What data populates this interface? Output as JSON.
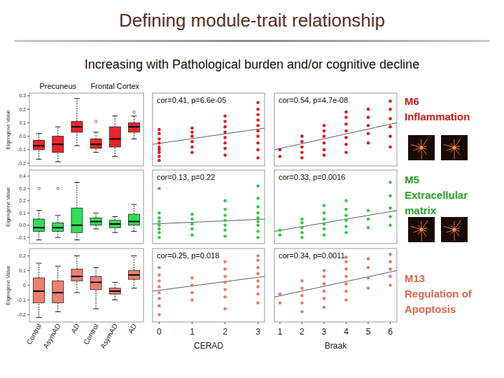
{
  "header": {
    "title": "Defining module-trait relationship",
    "subtitle": "Increasing with Pathological burden and/or cognitive decline"
  },
  "chart_data": [
    {
      "type": "box",
      "groups": [
        "Precuneus",
        "Frontal Cortex"
      ],
      "categories": [
        "Control",
        "AsymAD",
        "AD",
        "Control",
        "AsymAD",
        "AD"
      ],
      "ylabel": "Eigengene Value",
      "ylim": [
        -0.22,
        0.32
      ],
      "yticks": [
        -0.2,
        -0.1,
        {
          "value": 0,
          "label": "0.0"
        },
        0.1,
        0.2,
        0.3
      ],
      "tick_labels": "y",
      "color": "#e8262a",
      "boxes": [
        {
          "whislo": -0.17,
          "q1": -0.1,
          "med": -0.07,
          "q3": -0.03,
          "whishi": 0.02,
          "fliers": []
        },
        {
          "whislo": -0.19,
          "q1": -0.12,
          "med": -0.06,
          "q3": 0,
          "whishi": 0.07,
          "fliers": []
        },
        {
          "whislo": -0.07,
          "q1": 0.03,
          "med": 0.07,
          "q3": 0.11,
          "whishi": 0.28,
          "fliers": []
        },
        {
          "whislo": -0.12,
          "q1": -0.09,
          "med": -0.06,
          "q3": -0.02,
          "whishi": 0.03,
          "fliers": [
            0.11
          ]
        },
        {
          "whislo": -0.15,
          "q1": -0.08,
          "med": -0.02,
          "q3": 0.07,
          "whishi": 0.15,
          "fliers": []
        },
        {
          "whislo": -0.02,
          "q1": 0.03,
          "med": 0.07,
          "q3": 0.1,
          "whishi": 0.15,
          "fliers": [
            0.18
          ]
        }
      ],
      "module": {
        "label": "M6",
        "description": "Inflammation",
        "color": "#d42020"
      }
    },
    {
      "type": "scatter",
      "annotation": "cor=0.41, p=6.6e-05",
      "xlim": [
        -0.2,
        3.2
      ],
      "xticks": [
        0,
        1,
        2,
        3
      ],
      "ylim": [
        -0.22,
        0.32
      ],
      "tick_labels": false,
      "color": "#e3191c",
      "x": [
        0,
        0,
        0,
        0,
        0,
        0,
        0,
        0,
        0,
        1,
        1,
        1,
        1,
        1,
        1,
        2,
        2,
        2,
        2,
        2,
        2,
        2,
        2,
        3,
        3,
        3,
        3,
        3,
        3,
        3,
        3,
        3,
        3
      ],
      "values": [
        -0.18,
        -0.15,
        -0.12,
        -0.1,
        -0.08,
        -0.05,
        -0.02,
        0.02,
        0.05,
        -0.12,
        -0.08,
        -0.04,
        0,
        0.03,
        0.06,
        -0.14,
        -0.09,
        -0.05,
        -0.01,
        0.03,
        0.07,
        0.11,
        0.15,
        -0.16,
        -0.1,
        -0.05,
        0,
        0.04,
        0.08,
        0.12,
        0.16,
        0.2,
        0.25
      ],
      "trend": {
        "x": [
          -0.2,
          3.2
        ],
        "values": [
          -0.06,
          0.06
        ]
      }
    },
    {
      "type": "scatter",
      "annotation": "cor=0.54, p=4.7e-08",
      "xlim": [
        0.75,
        6.3
      ],
      "xticks": [
        1,
        2,
        3,
        4,
        5,
        6
      ],
      "ylim": [
        -0.22,
        0.32
      ],
      "tick_labels": false,
      "color": "#e3191c",
      "x": [
        1,
        1,
        2,
        2,
        2,
        2,
        2,
        3,
        3,
        3,
        3,
        3,
        3,
        4,
        4,
        4,
        4,
        4,
        4,
        4,
        5,
        5,
        5,
        5,
        5,
        6,
        6,
        6,
        6,
        6,
        6
      ],
      "values": [
        -0.15,
        -0.1,
        -0.16,
        -0.12,
        -0.08,
        -0.04,
        0,
        -0.14,
        -0.1,
        -0.05,
        0,
        0.04,
        0.08,
        -0.12,
        -0.06,
        -0.01,
        0.04,
        0.09,
        0.14,
        0.18,
        -0.05,
        0.02,
        0.08,
        0.14,
        0.2,
        -0.08,
        0,
        0.07,
        0.13,
        0.2,
        0.26
      ],
      "trend": {
        "x": [
          0.75,
          6.3
        ],
        "values": [
          -0.1,
          0.1
        ]
      }
    },
    {
      "type": "box",
      "categories": [
        "Control",
        "AsymAD",
        "AD",
        "Control",
        "AsymAD",
        "AD"
      ],
      "ylabel": "Eigengene Value",
      "ylim": [
        -0.15,
        0.45
      ],
      "yticks": [
        -0.1,
        {
          "value": 0,
          "label": "0.0"
        },
        0.1,
        0.2,
        0.3,
        0.4
      ],
      "tick_labels": "y",
      "color": "#33dd55",
      "boxes": [
        {
          "whislo": -0.12,
          "q1": -0.05,
          "med": -0.02,
          "q3": 0.05,
          "whishi": 0.12,
          "fliers": [
            0.3
          ]
        },
        {
          "whislo": -0.1,
          "q1": -0.05,
          "med": -0.02,
          "q3": 0.02,
          "whishi": 0.08,
          "fliers": [
            0.3
          ]
        },
        {
          "whislo": -0.12,
          "q1": -0.06,
          "med": 0,
          "q3": 0.14,
          "whishi": 0.35,
          "fliers": []
        },
        {
          "whislo": -0.03,
          "q1": 0,
          "med": 0.03,
          "q3": 0.06,
          "whishi": 0.1,
          "fliers": []
        },
        {
          "whislo": -0.06,
          "q1": -0.02,
          "med": 0.01,
          "q3": 0.04,
          "whishi": 0.07,
          "fliers": []
        },
        {
          "whislo": -0.05,
          "q1": 0,
          "med": 0.03,
          "q3": 0.09,
          "whishi": 0.17,
          "fliers": []
        }
      ],
      "module": {
        "label": "M5",
        "description": "Extracellular matrix",
        "color": "#2aa02a"
      }
    },
    {
      "type": "scatter",
      "annotation": "cor=0.13, p=0.22",
      "xlim": [
        -0.2,
        3.2
      ],
      "xticks": [
        0,
        1,
        2,
        3
      ],
      "ylim": [
        -0.15,
        0.45
      ],
      "tick_labels": false,
      "color": "#2ecc40",
      "x": [
        0,
        0,
        0,
        0,
        0,
        0,
        0,
        0,
        1,
        1,
        1,
        1,
        1,
        2,
        2,
        2,
        2,
        2,
        2,
        2,
        3,
        3,
        3,
        3,
        3,
        3,
        3,
        3,
        3
      ],
      "values": [
        -0.1,
        -0.06,
        -0.03,
        0,
        0.03,
        0.06,
        0.1,
        0.3,
        -0.08,
        -0.03,
        0.01,
        0.05,
        0.09,
        -0.09,
        -0.04,
        0,
        0.04,
        0.08,
        0.13,
        0.2,
        -0.1,
        -0.05,
        0,
        0.03,
        0.06,
        0.1,
        0.15,
        0.22,
        0.32
      ],
      "trend": {
        "x": [
          -0.2,
          3.2
        ],
        "values": [
          0.01,
          0.05
        ]
      }
    },
    {
      "type": "scatter",
      "annotation": "cor=0.33, p=0.0016",
      "xlim": [
        0.75,
        6.3
      ],
      "xticks": [
        1,
        2,
        3,
        4,
        5,
        6
      ],
      "ylim": [
        -0.15,
        0.45
      ],
      "tick_labels": false,
      "color": "#2ecc40",
      "x": [
        1,
        1,
        2,
        2,
        2,
        2,
        2,
        3,
        3,
        3,
        3,
        3,
        3,
        4,
        4,
        4,
        4,
        4,
        4,
        5,
        5,
        5,
        6,
        6,
        6,
        6,
        6
      ],
      "values": [
        -0.08,
        -0.04,
        -0.1,
        -0.06,
        -0.02,
        0.02,
        0.05,
        -0.08,
        -0.03,
        0.01,
        0.05,
        0.1,
        0.16,
        -0.06,
        -0.01,
        0.04,
        0.08,
        0.13,
        0.2,
        -0.02,
        0.05,
        0.12,
        0,
        0.07,
        0.14,
        0.24,
        0.35
      ],
      "trend": {
        "x": [
          0.75,
          6.3
        ],
        "values": [
          -0.05,
          0.12
        ]
      }
    },
    {
      "type": "box",
      "categories": [
        "Control",
        "AsymAD",
        "AD",
        "Control",
        "AsymAD",
        "AD"
      ],
      "ylabel": "Eigengene Value",
      "ylim": [
        -0.25,
        0.25
      ],
      "yticks": [
        -0.2,
        -0.1,
        0,
        0.1,
        0.2
      ],
      "color": "#f08070",
      "boxes": [
        {
          "whislo": -0.22,
          "q1": -0.12,
          "med": -0.04,
          "q3": 0.05,
          "whishi": 0.15,
          "fliers": []
        },
        {
          "whislo": -0.18,
          "q1": -0.12,
          "med": -0.05,
          "q3": 0.03,
          "whishi": 0.13,
          "fliers": []
        },
        {
          "whislo": -0.05,
          "q1": 0.03,
          "med": 0.06,
          "q3": 0.11,
          "whishi": 0.2,
          "fliers": []
        },
        {
          "whislo": -0.16,
          "q1": -0.03,
          "med": 0.02,
          "q3": 0.06,
          "whishi": 0.12,
          "fliers": []
        },
        {
          "whislo": -0.1,
          "q1": -0.06,
          "med": -0.04,
          "q3": -0.02,
          "whishi": 0.02,
          "fliers": []
        },
        {
          "whislo": -0.02,
          "q1": 0.04,
          "med": 0.07,
          "q3": 0.1,
          "whishi": 0.2,
          "fliers": []
        }
      ],
      "module": {
        "label": "M13",
        "description": "Regulation of Apoptosis",
        "color": "#e06a55"
      }
    },
    {
      "type": "scatter",
      "annotation": "cor=0.25, p=0.018",
      "xlabel": "CERAD",
      "xlim": [
        -0.2,
        3.2
      ],
      "xticks": [
        0,
        1,
        2,
        3
      ],
      "ylim": [
        -0.25,
        0.25
      ],
      "tick_labels": "x",
      "color": "#ee7a66",
      "x": [
        0,
        0,
        0,
        0,
        0,
        0,
        0,
        0,
        1,
        1,
        1,
        1,
        2,
        2,
        2,
        2,
        2,
        2,
        2,
        3,
        3,
        3,
        3,
        3,
        3,
        3,
        3
      ],
      "values": [
        -0.2,
        -0.14,
        -0.09,
        -0.05,
        -0.01,
        0.03,
        0.07,
        0.12,
        -0.1,
        -0.05,
        0,
        0.05,
        -0.16,
        -0.08,
        -0.03,
        0.02,
        0.06,
        0.11,
        0.16,
        -0.12,
        -0.06,
        -0.01,
        0.03,
        0.08,
        0.12,
        0.17,
        0.2
      ],
      "trend": {
        "x": [
          -0.2,
          3.2
        ],
        "values": [
          -0.04,
          0.06
        ]
      }
    },
    {
      "type": "scatter",
      "annotation": "cor=0.34, p=0.0011",
      "xlabel": "Braak",
      "xlim": [
        0.75,
        6.3
      ],
      "xticks": [
        1,
        2,
        3,
        4,
        5,
        6
      ],
      "ylim": [
        -0.25,
        0.25
      ],
      "tick_labels": "x",
      "color": "#ee7a66",
      "x": [
        1,
        1,
        2,
        2,
        2,
        2,
        2,
        3,
        3,
        3,
        3,
        3,
        3,
        4,
        4,
        4,
        4,
        4,
        4,
        4,
        5,
        5,
        5,
        5,
        6,
        6,
        6,
        6,
        6
      ],
      "values": [
        -0.12,
        -0.06,
        -0.18,
        -0.12,
        -0.07,
        -0.02,
        0.03,
        -0.15,
        -0.09,
        -0.04,
        0.01,
        0.06,
        0.1,
        -0.1,
        -0.04,
        0.01,
        0.06,
        0.11,
        0.16,
        0.19,
        -0.02,
        0.05,
        0.12,
        0.18,
        0,
        0.06,
        0.11,
        0.16,
        0.21
      ],
      "trend": {
        "x": [
          0.75,
          6.3
        ],
        "values": [
          -0.08,
          0.1
        ]
      }
    }
  ]
}
